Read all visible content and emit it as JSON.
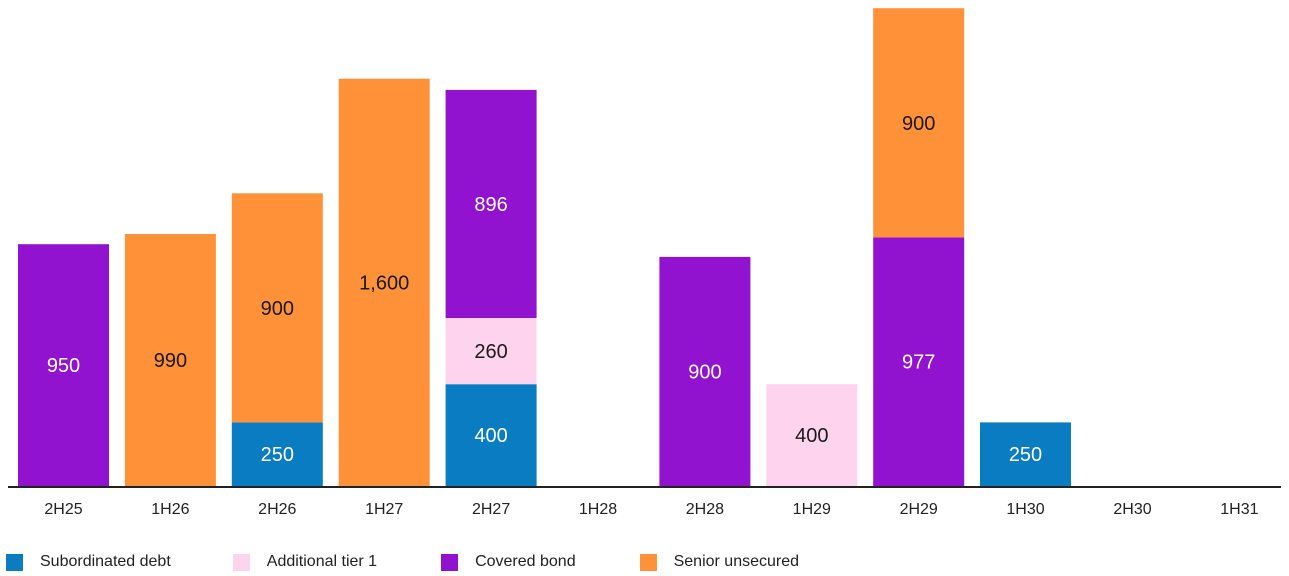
{
  "chart_data": {
    "type": "bar",
    "stacked": true,
    "categories": [
      "2H25",
      "1H26",
      "2H26",
      "1H27",
      "2H27",
      "1H28",
      "2H28",
      "1H29",
      "2H29",
      "1H30",
      "2H30",
      "1H31"
    ],
    "series": [
      {
        "name": "Subordinated debt",
        "color": "#0A7CC1",
        "values": [
          0,
          0,
          250,
          0,
          400,
          0,
          0,
          0,
          0,
          250,
          0,
          0
        ]
      },
      {
        "name": "Additional tier 1",
        "color": "#FDD3EE",
        "values": [
          0,
          0,
          0,
          0,
          260,
          0,
          0,
          400,
          0,
          0,
          0,
          0
        ]
      },
      {
        "name": "Covered bond",
        "color": "#9213CF",
        "values": [
          950,
          0,
          0,
          0,
          896,
          0,
          900,
          0,
          977,
          0,
          0,
          0
        ]
      },
      {
        "name": "Senior unsecured",
        "color": "#FF9139",
        "values": [
          0,
          990,
          900,
          1600,
          0,
          0,
          0,
          0,
          900,
          0,
          0,
          0
        ]
      }
    ],
    "data_labels": [
      {
        "category": "2H25",
        "series": "Covered bond",
        "text": "950"
      },
      {
        "category": "1H26",
        "series": "Senior unsecured",
        "text": "990"
      },
      {
        "category": "2H26",
        "series": "Subordinated debt",
        "text": "250"
      },
      {
        "category": "2H26",
        "series": "Senior unsecured",
        "text": "900"
      },
      {
        "category": "1H27",
        "series": "Senior unsecured",
        "text": "1,600"
      },
      {
        "category": "2H27",
        "series": "Subordinated debt",
        "text": "400"
      },
      {
        "category": "2H27",
        "series": "Additional tier 1",
        "text": "260"
      },
      {
        "category": "2H27",
        "series": "Covered bond",
        "text": "896"
      },
      {
        "category": "2H28",
        "series": "Covered bond",
        "text": "900"
      },
      {
        "category": "1H29",
        "series": "Additional tier 1",
        "text": "400"
      },
      {
        "category": "2H29",
        "series": "Covered bond",
        "text": "977"
      },
      {
        "category": "2H29",
        "series": "Senior unsecured",
        "text": "900"
      },
      {
        "category": "1H30",
        "series": "Subordinated debt",
        "text": "250"
      }
    ],
    "ylim": [
      0,
      1870
    ],
    "grid": false,
    "legend_position": "bottom-left"
  }
}
